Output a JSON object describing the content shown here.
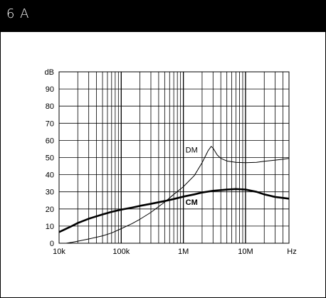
{
  "header": {
    "title": "6 A"
  },
  "chart_data": {
    "type": "line",
    "title": "",
    "xlabel": "Hz",
    "ylabel": "dB",
    "xscale": "log",
    "xlim": [
      10000,
      50000000
    ],
    "ylim": [
      0,
      100
    ],
    "grid": true,
    "legend": "none",
    "x_ticks": [
      {
        "value": 10000,
        "label": "10k"
      },
      {
        "value": 100000,
        "label": "100k"
      },
      {
        "value": 1000000,
        "label": "1M"
      },
      {
        "value": 10000000,
        "label": "10M"
      }
    ],
    "y_ticks": [
      0,
      10,
      20,
      30,
      40,
      50,
      60,
      70,
      80,
      90
    ],
    "series": [
      {
        "name": "DM",
        "label_at": {
          "x": 1700000,
          "y": 53
        },
        "bold": false,
        "points": [
          [
            10000,
            0
          ],
          [
            13000,
            0
          ],
          [
            16000,
            0.5
          ],
          [
            20000,
            1.2
          ],
          [
            30000,
            2.5
          ],
          [
            50000,
            4.3
          ],
          [
            70000,
            6
          ],
          [
            100000,
            8.5
          ],
          [
            150000,
            11.5
          ],
          [
            200000,
            14
          ],
          [
            300000,
            18
          ],
          [
            500000,
            24
          ],
          [
            700000,
            28.5
          ],
          [
            1000000,
            33
          ],
          [
            1500000,
            39.5
          ],
          [
            2000000,
            47
          ],
          [
            2500000,
            54
          ],
          [
            2800000,
            56.5
          ],
          [
            3000000,
            55.5
          ],
          [
            3500000,
            51.5
          ],
          [
            4000000,
            49.5
          ],
          [
            5000000,
            48
          ],
          [
            7000000,
            47.2
          ],
          [
            10000000,
            47
          ],
          [
            15000000,
            47.2
          ],
          [
            20000000,
            47.8
          ],
          [
            30000000,
            48.5
          ],
          [
            40000000,
            49
          ],
          [
            50000000,
            49.5
          ]
        ]
      },
      {
        "name": "CM",
        "label_at": {
          "x": 1700000,
          "y": 22.5
        },
        "bold": true,
        "points": [
          [
            10000,
            6.5
          ],
          [
            15000,
            9.5
          ],
          [
            20000,
            11.8
          ],
          [
            30000,
            14.3
          ],
          [
            50000,
            16.8
          ],
          [
            70000,
            18.3
          ],
          [
            100000,
            19.6
          ],
          [
            150000,
            20.8
          ],
          [
            200000,
            21.8
          ],
          [
            300000,
            23
          ],
          [
            500000,
            24.6
          ],
          [
            700000,
            25.8
          ],
          [
            1000000,
            27.2
          ],
          [
            1500000,
            28.5
          ],
          [
            2000000,
            29.6
          ],
          [
            3000000,
            30.6
          ],
          [
            5000000,
            31.3
          ],
          [
            7000000,
            31.6
          ],
          [
            10000000,
            31.3
          ],
          [
            15000000,
            30
          ],
          [
            20000000,
            28.5
          ],
          [
            30000000,
            27
          ],
          [
            50000000,
            26
          ]
        ]
      }
    ]
  }
}
